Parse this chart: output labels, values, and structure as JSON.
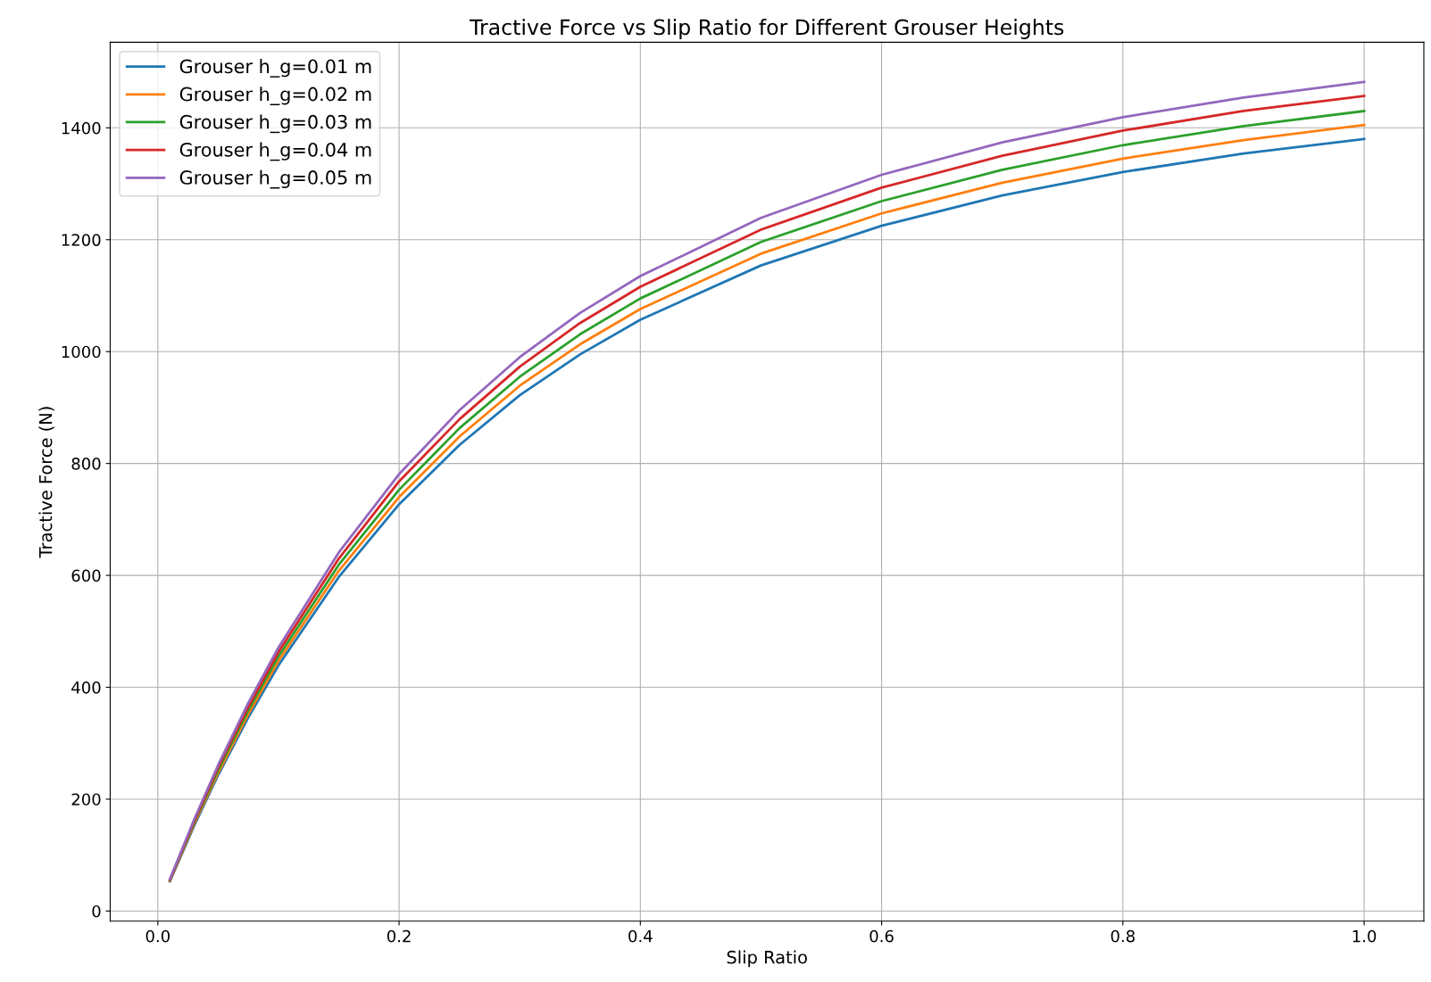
{
  "chart_data": {
    "type": "line",
    "title": "Tractive Force vs Slip Ratio for Different Grouser Heights",
    "xlabel": "Slip Ratio",
    "ylabel": "Tractive Force (N)",
    "x": [
      0.01,
      0.03,
      0.05,
      0.075,
      0.1,
      0.15,
      0.2,
      0.25,
      0.3,
      0.35,
      0.4,
      0.5,
      0.6,
      0.7,
      0.8,
      0.9,
      1.0
    ],
    "series": [
      {
        "name": "Grouser h_g=0.01 m",
        "color": "#1f77b4",
        "values": [
          53,
          152,
          243,
          346,
          439,
          597,
          727,
          833,
          922,
          995,
          1057,
          1154,
          1225,
          1279,
          1321,
          1354,
          1380
        ]
      },
      {
        "name": "Grouser h_g=0.02 m",
        "color": "#ff7f0e",
        "values": [
          54,
          155,
          247,
          352,
          447,
          608,
          740,
          848,
          939,
          1013,
          1076,
          1175,
          1247,
          1302,
          1345,
          1378,
          1405
        ]
      },
      {
        "name": "Grouser h_g=0.03 m",
        "color": "#2ca02c",
        "values": [
          55,
          158,
          252,
          359,
          455,
          619,
          753,
          863,
          955,
          1031,
          1095,
          1196,
          1269,
          1325,
          1369,
          1403,
          1430
        ]
      },
      {
        "name": "Grouser h_g=0.04 m",
        "color": "#d62728",
        "values": [
          56,
          160,
          257,
          365,
          463,
          630,
          768,
          879,
          973,
          1051,
          1116,
          1218,
          1293,
          1350,
          1395,
          1430,
          1457
        ]
      },
      {
        "name": "Grouser h_g=0.05 m",
        "color": "#9467bd",
        "values": [
          57,
          163,
          261,
          372,
          471,
          641,
          781,
          895,
          990,
          1069,
          1135,
          1239,
          1316,
          1374,
          1419,
          1454,
          1482
        ]
      }
    ],
    "xlim": [
      -0.0395,
      1.0495
    ],
    "xticks": [
      {
        "value": 0,
        "label": "0.0"
      },
      0.2,
      0.4,
      0.6,
      0.8,
      {
        "value": 1,
        "label": "1.0"
      }
    ],
    "ylim": [
      -18,
      1553
    ],
    "yticks": [
      0,
      200,
      400,
      600,
      800,
      1000,
      1200,
      1400
    ],
    "grid": true,
    "legend": "top left",
    "line_style": "solid",
    "marker": "none"
  }
}
